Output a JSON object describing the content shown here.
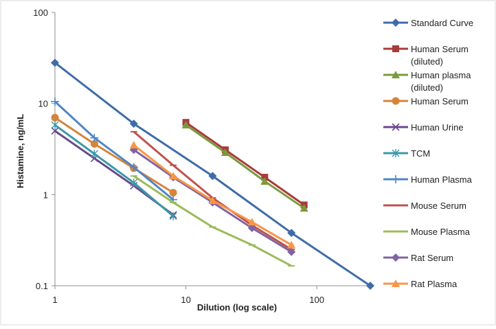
{
  "chart_data": {
    "type": "line",
    "title": "",
    "xlabel": "Dilution (log scale)",
    "ylabel": "Histamine, ng/mL",
    "x_scale": "log",
    "y_scale": "log",
    "xlim": [
      1,
      250
    ],
    "ylim": [
      0.1,
      100
    ],
    "x_ticks": [
      {
        "value": 1,
        "label": "1"
      },
      {
        "value": 10,
        "label": "10"
      },
      {
        "value": 100,
        "label": "100"
      }
    ],
    "y_ticks": [
      {
        "value": 0.1,
        "label": "0.1"
      },
      {
        "value": 1,
        "label": "1"
      },
      {
        "value": 10,
        "label": "10"
      },
      {
        "value": 100,
        "label": "100"
      }
    ],
    "grid": false,
    "legend_position": "right",
    "series": [
      {
        "name": "Standard Curve",
        "name_lines": [
          "Standard Curve"
        ],
        "color": "#3E6CA8",
        "marker": "diamond",
        "x": [
          1,
          4,
          16,
          64,
          256
        ],
        "y": [
          28,
          6,
          1.6,
          0.38,
          0.1
        ]
      },
      {
        "name": "Human Serum (diluted)",
        "name_lines": [
          "Human Serum",
          "(diluted)"
        ],
        "color": "#A83C3A",
        "marker": "square",
        "x": [
          10,
          20,
          40,
          80
        ],
        "y": [
          6.2,
          3.1,
          1.55,
          0.77
        ]
      },
      {
        "name": "Human plasma (diluted)",
        "name_lines": [
          "Human plasma",
          "(diluted)"
        ],
        "color": "#7A9A3C",
        "marker": "triangle",
        "x": [
          10,
          20,
          40,
          80
        ],
        "y": [
          5.8,
          2.9,
          1.4,
          0.71
        ]
      },
      {
        "name": "Human Serum",
        "name_lines": [
          "Human Serum"
        ],
        "color": "#D6843A",
        "marker": "circle",
        "x": [
          1,
          2,
          4,
          8
        ],
        "y": [
          7,
          3.6,
          1.95,
          1.05
        ]
      },
      {
        "name": "Human Urine",
        "name_lines": [
          "Human Urine"
        ],
        "color": "#6A4A8C",
        "marker": "x",
        "x": [
          1,
          2,
          4,
          8
        ],
        "y": [
          5,
          2.5,
          1.25,
          0.6
        ]
      },
      {
        "name": "TCM",
        "name_lines": [
          "TCM"
        ],
        "color": "#3A9AA8",
        "marker": "star",
        "x": [
          1,
          2,
          4,
          8
        ],
        "y": [
          5.8,
          2.8,
          1.35,
          0.58
        ]
      },
      {
        "name": "Human Plasma",
        "name_lines": [
          "Human Plasma"
        ],
        "color": "#4F86C6",
        "marker": "plus",
        "x": [
          1,
          2,
          4,
          8
        ],
        "y": [
          10.5,
          4.2,
          2.0,
          0.88
        ]
      },
      {
        "name": "Mouse Serum",
        "name_lines": [
          "Mouse Serum"
        ],
        "color": "#C0504D",
        "marker": "dash",
        "x": [
          4,
          8,
          16,
          32,
          64
        ],
        "y": [
          4.9,
          2.1,
          0.92,
          0.46,
          0.25
        ]
      },
      {
        "name": "Mouse Plasma",
        "name_lines": [
          "Mouse Plasma"
        ],
        "color": "#9BBB59",
        "marker": "dash",
        "x": [
          4,
          8,
          16,
          32,
          64
        ],
        "y": [
          1.6,
          0.82,
          0.44,
          0.28,
          0.165
        ]
      },
      {
        "name": "Rat Serum",
        "name_lines": [
          "Rat Serum"
        ],
        "color": "#8064A2",
        "marker": "diamond",
        "x": [
          4,
          8,
          16,
          32,
          64
        ],
        "y": [
          3.1,
          1.55,
          0.82,
          0.43,
          0.235
        ]
      },
      {
        "name": "Rat Plasma",
        "name_lines": [
          "Rat Plasma"
        ],
        "color": "#F79646",
        "marker": "triangle",
        "x": [
          4,
          8,
          16,
          32,
          64
        ],
        "y": [
          3.5,
          1.6,
          0.86,
          0.5,
          0.28
        ]
      }
    ]
  }
}
